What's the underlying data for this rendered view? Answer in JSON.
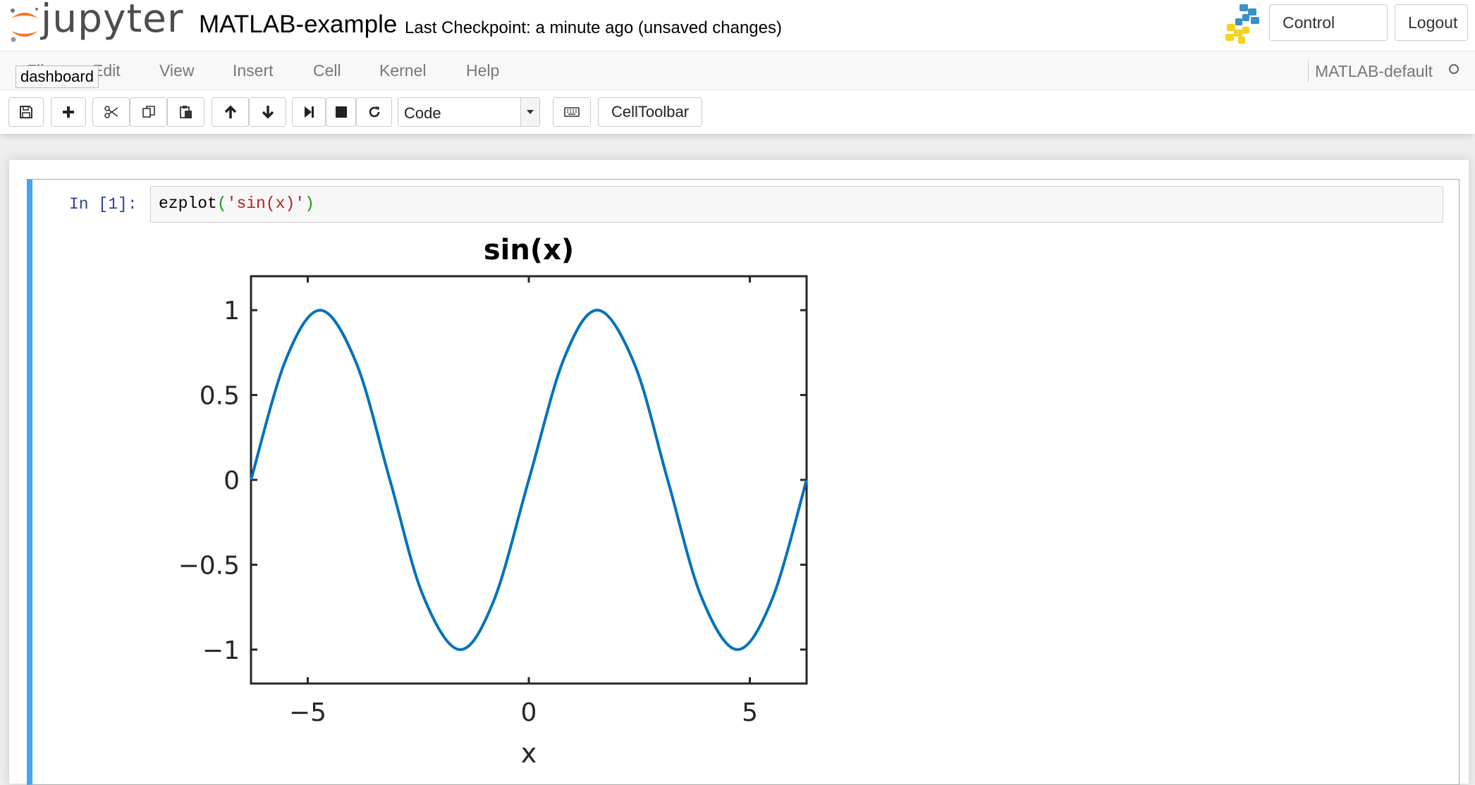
{
  "header": {
    "logo_text": "jupyter",
    "notebook_name": "MATLAB-example",
    "checkpoint": "Last Checkpoint: a minute ago (unsaved changes)",
    "buttons": {
      "control_panel": "Control Panel",
      "logout": "Logout"
    }
  },
  "menubar": {
    "items": [
      "File",
      "Edit",
      "View",
      "Insert",
      "Cell",
      "Kernel",
      "Help"
    ],
    "tooltip": "dashboard",
    "kernel_name": "MATLAB-default"
  },
  "toolbar": {
    "icons": [
      "save-icon",
      "plus-icon",
      "cut-icon",
      "copy-icon",
      "paste-icon",
      "arrow-up-icon",
      "arrow-down-icon",
      "step-forward-icon",
      "stop-icon",
      "refresh-icon",
      "keyboard-icon"
    ],
    "cell_type": "Code",
    "celltoolbar_label": "CellToolbar"
  },
  "cell": {
    "prompt": "In [1]:",
    "code_fn": "ezplot",
    "code_open": "(",
    "code_str": "'sin(x)'",
    "code_close": ")"
  },
  "chart_data": {
    "type": "line",
    "title": "sin(x)",
    "xlabel": "x",
    "ylabel": "",
    "xlim": [
      -6.2832,
      6.2832
    ],
    "ylim": [
      -1.2,
      1.2
    ],
    "xticks": [
      -5,
      0,
      5
    ],
    "xtick_labels": [
      "−5",
      "0",
      "5"
    ],
    "yticks": [
      1,
      0.5,
      0,
      -0.5,
      -1
    ],
    "ytick_labels": [
      "1",
      "0.5",
      "0",
      "−0.5",
      "−1"
    ],
    "grid": false,
    "series": [
      {
        "color": "#0072bd",
        "x": [
          -6.2832,
          -5.5,
          -4.7124,
          -3.9,
          -3.1416,
          -2.4,
          -1.5708,
          -0.8,
          0,
          0.8,
          1.5708,
          2.4,
          3.1416,
          3.9,
          4.7124,
          5.5,
          6.2832
        ],
        "y": [
          0,
          0.7055,
          1,
          0.6878,
          0,
          -0.6755,
          -1,
          -0.7174,
          0,
          0.7174,
          1,
          0.6755,
          0,
          -0.6878,
          -1,
          -0.7055,
          0
        ]
      }
    ]
  }
}
